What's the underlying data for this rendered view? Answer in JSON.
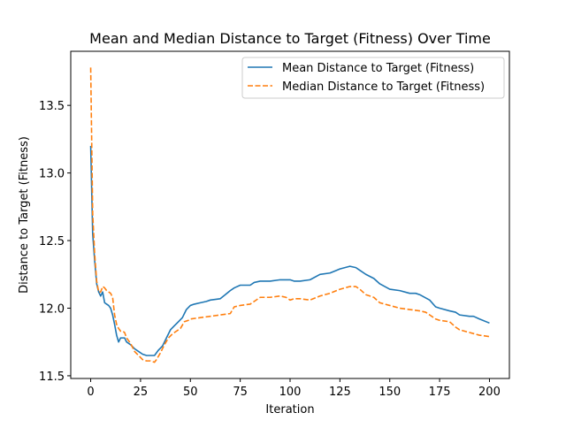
{
  "chart_data": {
    "type": "line",
    "title": "Mean and Median Distance to Target (Fitness) Over Time",
    "xlabel": "Iteration",
    "ylabel": "Distance to Target (Fitness)",
    "xlim": [
      -10,
      210
    ],
    "ylim": [
      11.48,
      13.9
    ],
    "xticks": [
      0,
      25,
      50,
      75,
      100,
      125,
      150,
      175,
      200
    ],
    "yticks": [
      11.5,
      12.0,
      12.5,
      13.0,
      13.5
    ],
    "ytick_labels": [
      "11.5",
      "12.0",
      "12.5",
      "13.0",
      "13.5"
    ],
    "grid": false,
    "legend_position": "top-right",
    "series": [
      {
        "name": "Mean Distance to Target (Fitness)",
        "color": "#1f77b4",
        "style": "solid",
        "points": [
          [
            0,
            13.2
          ],
          [
            1,
            12.55
          ],
          [
            2,
            12.35
          ],
          [
            3,
            12.18
          ],
          [
            4,
            12.12
          ],
          [
            5,
            12.09
          ],
          [
            6,
            12.12
          ],
          [
            7,
            12.04
          ],
          [
            8,
            12.03
          ],
          [
            9,
            12.02
          ],
          [
            10,
            12.0
          ],
          [
            11,
            11.95
          ],
          [
            12,
            11.88
          ],
          [
            13,
            11.8
          ],
          [
            14,
            11.75
          ],
          [
            15,
            11.78
          ],
          [
            16,
            11.78
          ],
          [
            17,
            11.78
          ],
          [
            18,
            11.75
          ],
          [
            20,
            11.73
          ],
          [
            22,
            11.7
          ],
          [
            24,
            11.68
          ],
          [
            26,
            11.66
          ],
          [
            28,
            11.65
          ],
          [
            30,
            11.65
          ],
          [
            32,
            11.65
          ],
          [
            34,
            11.69
          ],
          [
            36,
            11.72
          ],
          [
            38,
            11.78
          ],
          [
            40,
            11.84
          ],
          [
            42,
            11.87
          ],
          [
            44,
            11.9
          ],
          [
            46,
            11.93
          ],
          [
            48,
            11.99
          ],
          [
            50,
            12.02
          ],
          [
            52,
            12.03
          ],
          [
            55,
            12.04
          ],
          [
            58,
            12.05
          ],
          [
            60,
            12.06
          ],
          [
            65,
            12.07
          ],
          [
            70,
            12.13
          ],
          [
            72,
            12.15
          ],
          [
            75,
            12.17
          ],
          [
            80,
            12.17
          ],
          [
            82,
            12.19
          ],
          [
            85,
            12.2
          ],
          [
            90,
            12.2
          ],
          [
            95,
            12.21
          ],
          [
            100,
            12.21
          ],
          [
            102,
            12.2
          ],
          [
            105,
            12.2
          ],
          [
            110,
            12.21
          ],
          [
            115,
            12.25
          ],
          [
            120,
            12.26
          ],
          [
            125,
            12.29
          ],
          [
            130,
            12.31
          ],
          [
            133,
            12.3
          ],
          [
            135,
            12.28
          ],
          [
            138,
            12.25
          ],
          [
            142,
            12.22
          ],
          [
            145,
            12.18
          ],
          [
            150,
            12.14
          ],
          [
            155,
            12.13
          ],
          [
            160,
            12.11
          ],
          [
            163,
            12.11
          ],
          [
            165,
            12.1
          ],
          [
            170,
            12.06
          ],
          [
            173,
            12.01
          ],
          [
            175,
            12.0
          ],
          [
            180,
            11.98
          ],
          [
            183,
            11.97
          ],
          [
            185,
            11.95
          ],
          [
            190,
            11.94
          ],
          [
            192,
            11.94
          ],
          [
            195,
            11.92
          ],
          [
            200,
            11.89
          ]
        ]
      },
      {
        "name": "Median Distance to Target (Fitness)",
        "color": "#ff7f0e",
        "style": "dashed",
        "points": [
          [
            0,
            13.78
          ],
          [
            1,
            12.7
          ],
          [
            2,
            12.4
          ],
          [
            3,
            12.2
          ],
          [
            4,
            12.12
          ],
          [
            5,
            12.12
          ],
          [
            6,
            12.16
          ],
          [
            7,
            12.15
          ],
          [
            8,
            12.13
          ],
          [
            9,
            12.12
          ],
          [
            10,
            12.11
          ],
          [
            11,
            12.08
          ],
          [
            12,
            11.95
          ],
          [
            13,
            11.88
          ],
          [
            14,
            11.85
          ],
          [
            15,
            11.83
          ],
          [
            16,
            11.83
          ],
          [
            17,
            11.82
          ],
          [
            18,
            11.78
          ],
          [
            20,
            11.74
          ],
          [
            22,
            11.68
          ],
          [
            24,
            11.65
          ],
          [
            26,
            11.62
          ],
          [
            28,
            11.61
          ],
          [
            30,
            11.61
          ],
          [
            32,
            11.6
          ],
          [
            33,
            11.62
          ],
          [
            35,
            11.67
          ],
          [
            37,
            11.73
          ],
          [
            39,
            11.78
          ],
          [
            41,
            11.81
          ],
          [
            43,
            11.83
          ],
          [
            45,
            11.85
          ],
          [
            47,
            11.9
          ],
          [
            49,
            11.91
          ],
          [
            50,
            11.92
          ],
          [
            55,
            11.93
          ],
          [
            60,
            11.94
          ],
          [
            65,
            11.95
          ],
          [
            70,
            11.96
          ],
          [
            72,
            12.01
          ],
          [
            75,
            12.02
          ],
          [
            80,
            12.03
          ],
          [
            82,
            12.05
          ],
          [
            85,
            12.08
          ],
          [
            90,
            12.08
          ],
          [
            95,
            12.09
          ],
          [
            98,
            12.08
          ],
          [
            100,
            12.06
          ],
          [
            102,
            12.07
          ],
          [
            105,
            12.07
          ],
          [
            110,
            12.06
          ],
          [
            115,
            12.09
          ],
          [
            120,
            12.11
          ],
          [
            125,
            12.14
          ],
          [
            130,
            12.16
          ],
          [
            133,
            12.16
          ],
          [
            135,
            12.14
          ],
          [
            138,
            12.1
          ],
          [
            142,
            12.08
          ],
          [
            145,
            12.04
          ],
          [
            150,
            12.02
          ],
          [
            155,
            12.0
          ],
          [
            160,
            11.99
          ],
          [
            165,
            11.98
          ],
          [
            168,
            11.97
          ],
          [
            170,
            11.95
          ],
          [
            173,
            11.92
          ],
          [
            175,
            11.91
          ],
          [
            180,
            11.9
          ],
          [
            183,
            11.86
          ],
          [
            185,
            11.84
          ],
          [
            190,
            11.82
          ],
          [
            195,
            11.8
          ],
          [
            200,
            11.79
          ]
        ]
      }
    ]
  }
}
